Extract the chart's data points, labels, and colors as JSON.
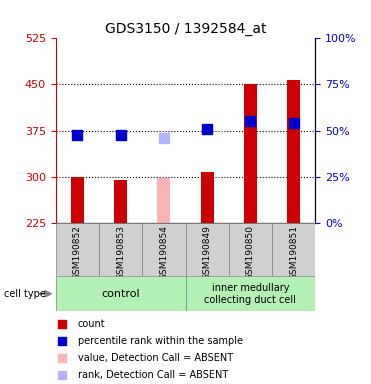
{
  "title": "GDS3150 / 1392584_at",
  "samples": [
    "GSM190852",
    "GSM190853",
    "GSM190854",
    "GSM190849",
    "GSM190850",
    "GSM190851"
  ],
  "groups": [
    {
      "name": "control",
      "indices": [
        0,
        1,
        2
      ],
      "color": "#b3f0b3"
    },
    {
      "name": "inner medullary\ncollecting duct cell",
      "indices": [
        3,
        4,
        5
      ],
      "color": "#b3f0b3"
    }
  ],
  "count_values": [
    300,
    295,
    null,
    308,
    450,
    457
  ],
  "count_absent": [
    null,
    null,
    297,
    null,
    null,
    null
  ],
  "percentile_values": [
    368,
    367,
    null,
    378,
    390,
    388
  ],
  "percentile_absent": [
    null,
    null,
    363,
    null,
    null,
    null
  ],
  "y_min": 225,
  "y_max": 525,
  "y_ticks": [
    225,
    300,
    375,
    450,
    525
  ],
  "y_right_ticks": [
    0,
    25,
    50,
    75,
    100
  ],
  "y_right_tick_positions": [
    225,
    281.25,
    337.5,
    393.75,
    450
  ],
  "bar_color": "#cc0000",
  "bar_absent_color": "#ffb3b3",
  "dot_color": "#0000cc",
  "dot_absent_color": "#b3b3ff",
  "left_tick_color": "#cc0000",
  "right_tick_color": "#0000cc",
  "group_label_color": "#000000",
  "cell_type_color": "#b3f0b3",
  "bar_width": 0.3,
  "dot_size": 60
}
